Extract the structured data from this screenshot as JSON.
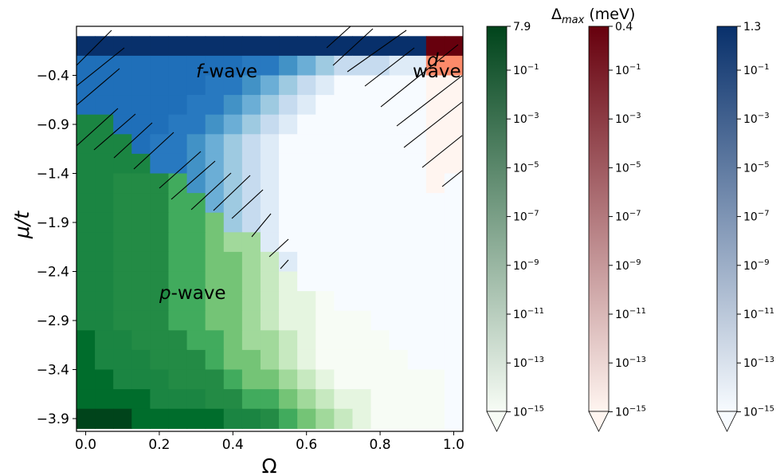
{
  "chart_data": {
    "type": "heatmap",
    "xlabel": "Ω",
    "ylabel": "μ/t",
    "xlim": [
      -0.025,
      1.025
    ],
    "ylim": [
      -4.03,
      0.1
    ],
    "x_ticks": [
      "0.0",
      "0.2",
      "0.4",
      "0.6",
      "0.8",
      "1.0"
    ],
    "x_tick_values": [
      0.0,
      0.2,
      0.4,
      0.6,
      0.8,
      1.0
    ],
    "y_ticks": [
      "−0.4",
      "−0.9",
      "−1.4",
      "−1.9",
      "−2.4",
      "−2.9",
      "−3.4",
      "−3.9"
    ],
    "y_tick_values": [
      -0.4,
      -0.9,
      -1.4,
      -1.9,
      -2.4,
      -2.9,
      -3.4,
      -3.9
    ],
    "grid": {
      "x_start": 0.0,
      "x_step": 0.05,
      "n_cols": 21,
      "y_top": -0.1,
      "y_step": -0.2,
      "n_rows": 20
    },
    "phases": {
      "codes": "P = p-wave (green), F = f-wave (blue), D = d-wave (red); the digit after the letter is the shade from 0 (lightest) to 9 (darkest)",
      "rows": [
        "F9 F9 F9 F9 F9 F9 F9 F9 F9 F9 F9 F9 F9 F9 F9 F9 F9 F9 F9 D9 D9",
        "F7 F7 F7 F7 F7 F7 F7 F7 F7 F6 F6 F5 F4 F3 F2 F2 F2 F1 F1 D4 D4",
        "F7 F7 F7 F7 F7 F7 F7 F6 F6 F5 F4 F3 F2 F1 F0 F0 F0 F0 F0 D0 D0",
        "F7 F7 F7 F7 F7 F7 F6 F6 F5 F4 F3 F2 F1 F0 F0 F0 F0 F0 F0 D0 D0",
        "P7 P7 F7 F7 F7 F6 F6 F5 F4 F3 F2 F1 F0 F0 F0 F0 F0 F0 F0 D0 D0",
        "P7 P7 P7 F7 F6 F6 F5 F4 F3 F2 F1 F0 F0 F0 F0 F0 F0 F0 F0 D0 D0",
        "P7 P7 P7 P7 F6 F6 F5 F4 F3 F2 F1 F0 F0 F0 F0 F0 F0 F0 F0 D0 D0",
        "P7 P7 P6 P6 P6 P5 F5 F4 F3 F2 F1 F0 F0 F0 F0 F0 F0 F0 F0 D0 F0",
        "P7 P7 P6 P6 P6 P5 P5 F4 F3 F2 F1 F0 F0 F0 F0 F0 F0 F0 F0 F0 F0",
        "P7 P7 P6 P6 P6 P5 P5 P4 F3 F2 F1 F0 F0 F0 F0 F0 F0 F0 F0 F0 F0",
        "P7 P7 P6 P6 P6 P5 P5 P4 P3 P3 F1 F0 F0 F0 F0 F0 F0 F0 F0 F0 F0",
        "P7 P7 P6 P6 P6 P5 P5 P4 P4 P3 P2 F1 F0 F0 F0 F0 F0 F0 F0 F0 F0",
        "P7 P7 P6 P6 P6 P5 P5 P4 P4 P3 P2 P1 F0 F0 F0 F0 F0 F0 F0 F0 F0",
        "P7 P7 P6 P6 P6 P5 P5 P4 P4 P3 P2 P1 P1 P0 F0 F0 F0 F0 F0 F0 F0",
        "P7 P7 P6 P6 P6 P5 P5 P4 P4 P3 P2 P1 P1 P0 P0 P0 F0 F0 F0 F0 F0",
        "P8 P7 P7 P6 P6 P6 P5 P5 P4 P3 P3 P2 P1 P0 P0 P0 P0 F0 F0 F0 F0",
        "P8 P7 P7 P7 P6 P6 P6 P5 P4 P4 P3 P2 P1 P0 P0 P0 P0 P0 F0 F0 F0",
        "P8 P8 P7 P7 P7 P6 P6 P6 P5 P4 P4 P3 P2 P1 P0 P0 P0 P0 P0 P0 F0",
        "P8 P8 P8 P8 P7 P7 P7 P6 P6 P5 P5 P4 P3 P2 P1 P1 P0 P0 P0 P0 F0",
        "P9 P9 P9 P8 P8 P8 P8 P8 P7 P7 P6 P5 P4 P3 P2 P1 P0 P0 P0 P0 F0"
      ]
    },
    "annotations": [
      {
        "text_italic": "f",
        "text": "-wave"
      },
      {
        "text_italic": "d",
        "text": "-",
        "text2": "wave"
      },
      {
        "text_italic": "p",
        "text": "-wave"
      }
    ],
    "colorbar_title": "Δmax (meV)",
    "colorbars": [
      {
        "name": "p-wave",
        "colormap": "Greens",
        "max_label": "7.9",
        "tick_exponents": [
          "-1",
          "-3",
          "-5",
          "-7",
          "-9",
          "-11",
          "-13",
          "-15"
        ],
        "color_light": "#f7fcf5",
        "color_dark": "#00441b"
      },
      {
        "name": "d-wave",
        "colormap": "Reds",
        "max_label": "0.4",
        "tick_exponents": [
          "-1",
          "-3",
          "-5",
          "-7",
          "-9",
          "-11",
          "-13",
          "-15"
        ],
        "color_light": "#fff5f0",
        "color_dark": "#67000d"
      },
      {
        "name": "f-wave",
        "colormap": "Blues",
        "max_label": "1.3",
        "tick_exponents": [
          "-1",
          "-3",
          "-5",
          "-7",
          "-9",
          "-11",
          "-13",
          "-15"
        ],
        "color_light": "#f7fbff",
        "color_dark": "#08306b"
      }
    ],
    "colormaps": {
      "P": [
        "#f7fcf5",
        "#e5f5e0",
        "#c7e9c0",
        "#a1d99b",
        "#74c476",
        "#41ab5d",
        "#238b45",
        "#1b8542",
        "#006d2c",
        "#00441b"
      ],
      "F": [
        "#f7fbff",
        "#deebf7",
        "#c6dbef",
        "#9ecae1",
        "#6baed6",
        "#4292c6",
        "#2879c0",
        "#1f6fb9",
        "#08519c",
        "#08306b"
      ],
      "D": [
        "#fff5f0",
        "#fee0d2",
        "#fcbba1",
        "#fc9272",
        "#fc8a6a",
        "#fb6a4a",
        "#ef3b2c",
        "#cb181d",
        "#a50f15",
        "#67000d"
      ]
    },
    "ten_label": "10"
  }
}
